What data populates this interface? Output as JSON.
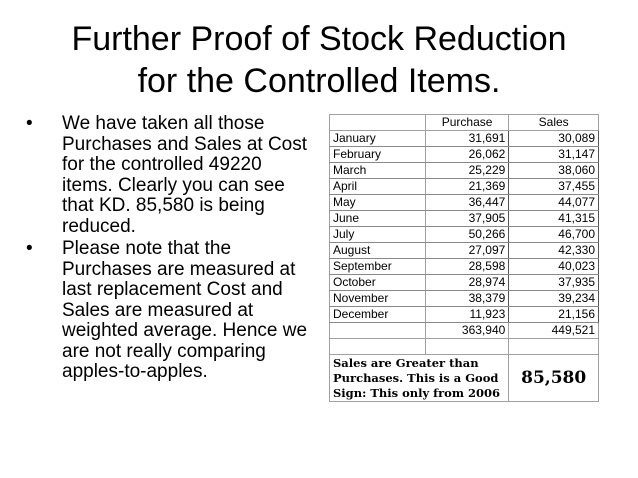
{
  "slide": {
    "title_line1": "Further Proof of Stock Reduction",
    "title_line2": "for the Controlled Items.",
    "bullets": [
      "We have taken all those Purchases and Sales at Cost for the controlled 49220 items. Clearly you can see that KD. 85,580 is being reduced.",
      "Please note that the Purchases are measured at last replacement Cost and Sales are measured at weighted average. Hence we are not really comparing apples-to-apples."
    ],
    "bullet_glyph": "•"
  },
  "table": {
    "headers": [
      "",
      "Purchase",
      "Sales"
    ],
    "rows": [
      [
        "January",
        "31,691",
        "30,089"
      ],
      [
        "February",
        "26,062",
        "31,147"
      ],
      [
        "March",
        "25,229",
        "38,060"
      ],
      [
        "April",
        "21,369",
        "37,455"
      ],
      [
        "May",
        "36,447",
        "44,077"
      ],
      [
        "June",
        "37,905",
        "41,315"
      ],
      [
        "July",
        "50,266",
        "46,700"
      ],
      [
        "August",
        "27,097",
        "42,330"
      ],
      [
        "September",
        "28,598",
        "40,023"
      ],
      [
        "October",
        "28,974",
        "37,935"
      ],
      [
        "November",
        "38,379",
        "39,234"
      ],
      [
        "December",
        "11,923",
        "21,156"
      ]
    ],
    "totals": [
      "",
      "363,940",
      "449,521"
    ],
    "note_text": "Sales are Greater than Purchases. This is a Good Sign: This only from 2006",
    "difference": "85,580"
  }
}
